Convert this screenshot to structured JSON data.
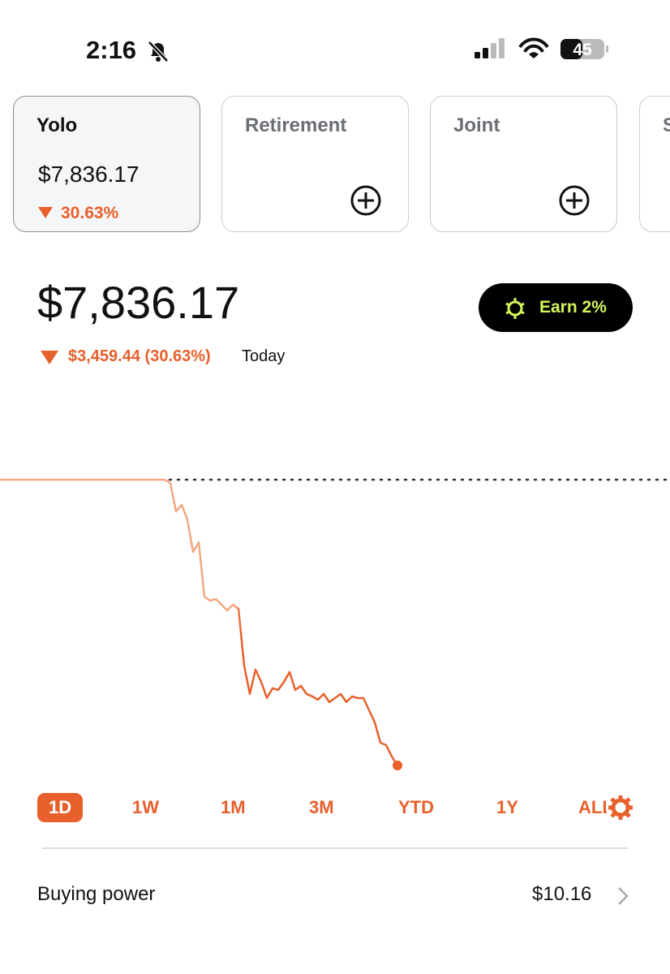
{
  "status_bar": {
    "time": "2:16",
    "battery": "45"
  },
  "accounts": [
    {
      "name": "Yolo",
      "value": "$7,836.17",
      "change": "30.63%"
    },
    {
      "name": "Retirement"
    },
    {
      "name": "Joint"
    },
    {
      "name": "S"
    }
  ],
  "portfolio": {
    "value": "$7,836.17",
    "change": "$3,459.44 (30.63%)",
    "period": "Today"
  },
  "earn_button": "Earn 2%",
  "chart_data": {
    "type": "line",
    "color": "#e8602c",
    "early_color": "#f2a882",
    "reference_color": "#e8602c",
    "reference": 11295.61,
    "ylim": [
      7669,
      12387
    ],
    "values": [
      11295.61,
      11295.61,
      11295.61,
      11295.61,
      11295.61,
      11295.61,
      11295.61,
      11295.61,
      11295.61,
      11295.61,
      11295.61,
      11295.61,
      11295.61,
      11295.61,
      11295.61,
      11295.61,
      11295.61,
      11295.61,
      11295.61,
      11295.61,
      11295.61,
      11295.61,
      11295.61,
      11295.61,
      11295.61,
      11295.61,
      11295.61,
      11295.61,
      11295.61,
      11295.61,
      11256,
      10912,
      10991,
      10814,
      10421,
      10539,
      9880,
      9831,
      9851,
      9782,
      9713,
      9782,
      9733,
      9045,
      8701,
      8996,
      8848,
      8652,
      8770,
      8750,
      8848,
      8966,
      8750,
      8799,
      8701,
      8672,
      8632,
      8701,
      8603,
      8652,
      8701,
      8603,
      8672,
      8652,
      8652,
      8504,
      8357,
      8111,
      8082,
      7944,
      7836.17
    ]
  },
  "timeframes": [
    "1D",
    "1W",
    "1M",
    "3M",
    "YTD",
    "1Y",
    "ALL"
  ],
  "buying_power": {
    "label": "Buying power",
    "value": "$10.16"
  }
}
